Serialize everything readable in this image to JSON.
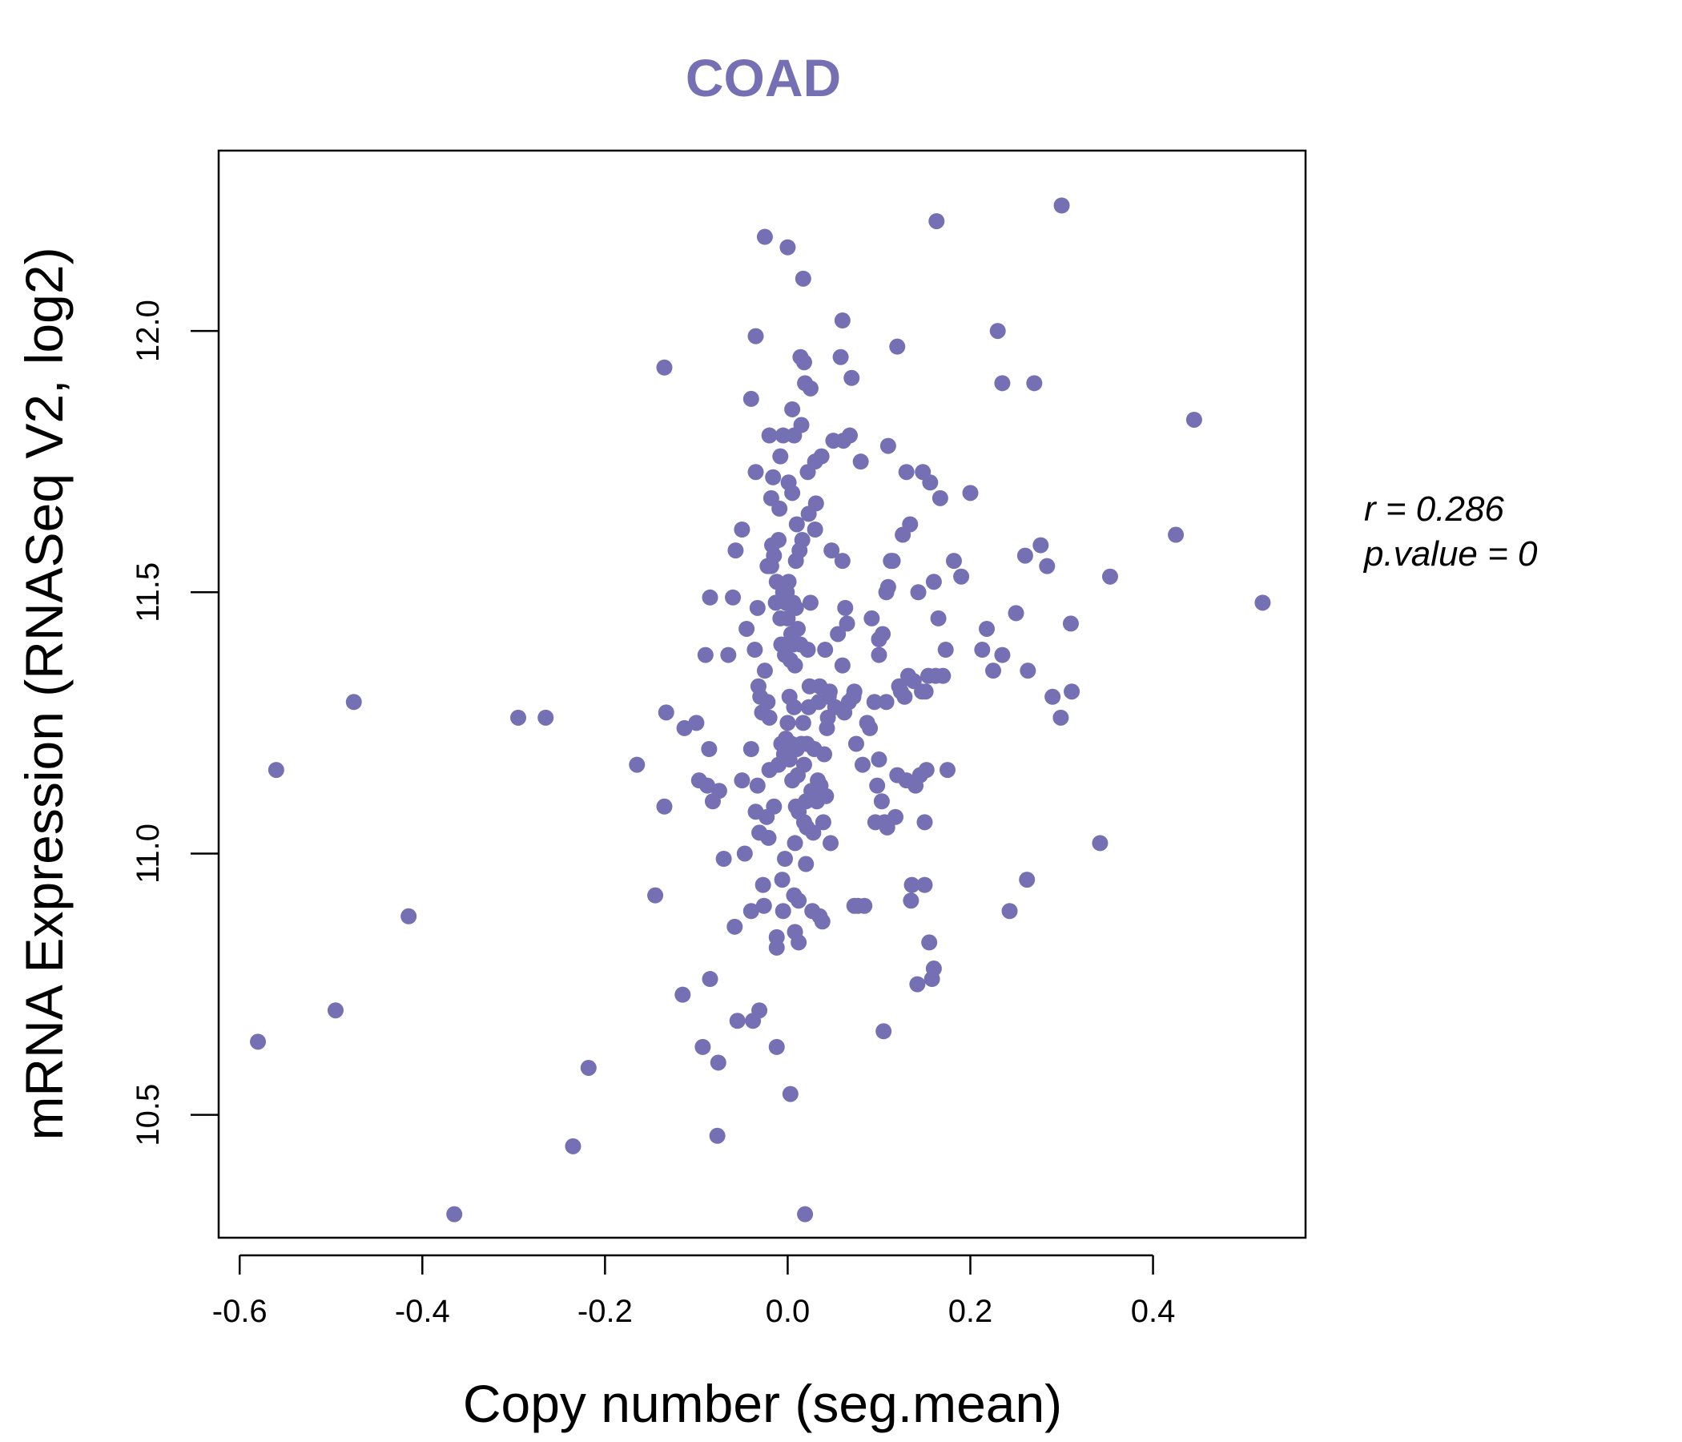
{
  "chart_data": {
    "type": "scatter",
    "title": "COAD",
    "xlabel": "Copy number (seg.mean)",
    "ylabel": "mRNA Expression (RNASeq V2, log2)",
    "xlim": [
      -0.623,
      0.567
    ],
    "ylim": [
      10.265,
      12.345
    ],
    "xticks": [
      -0.6,
      -0.4,
      -0.2,
      0.0,
      0.2,
      0.4
    ],
    "xtick_labels": [
      "-0.6",
      "-0.4",
      "-0.2",
      "0.0",
      "0.2",
      "0.4"
    ],
    "yticks": [
      10.5,
      11.0,
      11.5,
      12.0
    ],
    "ytick_labels": [
      "10.5",
      "11.0",
      "11.5",
      "12.0"
    ],
    "grid": false,
    "legend": "none",
    "colors": {
      "points": "#7570b3",
      "title": "#7570b3",
      "axes": "#000000"
    },
    "annotation": {
      "r_label": "r = 0.286",
      "p_label": "p.value = 0"
    },
    "points": [
      [
        -0.58,
        10.64
      ],
      [
        -0.56,
        11.16
      ],
      [
        -0.495,
        10.7
      ],
      [
        -0.475,
        11.29
      ],
      [
        -0.415,
        10.88
      ],
      [
        -0.365,
        10.31
      ],
      [
        -0.295,
        11.26
      ],
      [
        -0.265,
        11.26
      ],
      [
        -0.235,
        10.44
      ],
      [
        -0.218,
        10.59
      ],
      [
        -0.165,
        11.17
      ],
      [
        -0.145,
        10.92
      ],
      [
        -0.135,
        11.09
      ],
      [
        -0.133,
        11.27
      ],
      [
        -0.135,
        11.93
      ],
      [
        -0.115,
        10.73
      ],
      [
        -0.113,
        11.24
      ],
      [
        -0.1,
        11.25
      ],
      [
        -0.097,
        11.14
      ],
      [
        -0.093,
        10.63
      ],
      [
        -0.09,
        11.38
      ],
      [
        -0.088,
        11.13
      ],
      [
        -0.086,
        11.2
      ],
      [
        -0.085,
        11.49
      ],
      [
        -0.085,
        10.76
      ],
      [
        -0.082,
        11.1
      ],
      [
        -0.076,
        10.6
      ],
      [
        -0.075,
        11.12
      ],
      [
        -0.077,
        10.46
      ],
      [
        -0.07,
        10.99
      ],
      [
        -0.065,
        11.38
      ],
      [
        -0.06,
        11.49
      ],
      [
        -0.058,
        10.86
      ],
      [
        -0.057,
        11.58
      ],
      [
        -0.055,
        10.68
      ],
      [
        -0.05,
        11.14
      ],
      [
        -0.05,
        11.62
      ],
      [
        -0.047,
        11.0
      ],
      [
        -0.045,
        11.43
      ],
      [
        -0.04,
        11.2
      ],
      [
        -0.04,
        10.89
      ],
      [
        -0.04,
        11.87
      ],
      [
        -0.038,
        10.68
      ],
      [
        -0.035,
        11.08
      ],
      [
        -0.036,
        11.39
      ],
      [
        -0.035,
        11.73
      ],
      [
        -0.035,
        11.99
      ],
      [
        -0.033,
        11.47
      ],
      [
        -0.033,
        11.13
      ],
      [
        -0.032,
        11.32
      ],
      [
        -0.031,
        11.04
      ],
      [
        -0.031,
        10.7
      ],
      [
        -0.03,
        11.3
      ],
      [
        -0.028,
        11.27
      ],
      [
        -0.027,
        10.94
      ],
      [
        -0.026,
        10.9
      ],
      [
        -0.025,
        12.18
      ],
      [
        -0.025,
        11.35
      ],
      [
        -0.023,
        11.07
      ],
      [
        -0.022,
        11.29
      ],
      [
        -0.022,
        11.55
      ],
      [
        -0.021,
        11.03
      ],
      [
        -0.02,
        11.8
      ],
      [
        -0.02,
        11.26
      ],
      [
        -0.02,
        11.16
      ],
      [
        -0.018,
        11.55
      ],
      [
        -0.018,
        11.68
      ],
      [
        -0.017,
        11.59
      ],
      [
        -0.016,
        11.72
      ],
      [
        -0.015,
        11.57
      ],
      [
        -0.015,
        11.09
      ],
      [
        -0.013,
        11.48
      ],
      [
        -0.012,
        11.52
      ],
      [
        -0.012,
        10.84
      ],
      [
        -0.012,
        10.63
      ],
      [
        -0.012,
        10.82
      ],
      [
        -0.01,
        11.6
      ],
      [
        -0.01,
        11.17
      ],
      [
        -0.009,
        11.66
      ],
      [
        -0.008,
        11.45
      ],
      [
        -0.008,
        11.76
      ],
      [
        -0.007,
        11.21
      ],
      [
        -0.007,
        11.4
      ],
      [
        -0.006,
        10.95
      ],
      [
        -0.005,
        11.5
      ],
      [
        -0.005,
        11.8
      ],
      [
        -0.005,
        10.89
      ],
      [
        -0.004,
        11.19
      ],
      [
        -0.003,
        11.38
      ],
      [
        -0.003,
        10.99
      ],
      [
        -0.002,
        11.48
      ],
      [
        -0.002,
        11.22
      ],
      [
        -0.001,
        11.5
      ],
      [
        0.0,
        11.45
      ],
      [
        0.0,
        12.16
      ],
      [
        0.0,
        11.25
      ],
      [
        0.001,
        11.71
      ],
      [
        0.001,
        11.52
      ],
      [
        0.002,
        11.3
      ],
      [
        0.002,
        11.18
      ],
      [
        0.003,
        11.37
      ],
      [
        0.003,
        10.54
      ],
      [
        0.004,
        11.21
      ],
      [
        0.004,
        11.42
      ],
      [
        0.005,
        11.85
      ],
      [
        0.005,
        11.69
      ],
      [
        0.005,
        11.14
      ],
      [
        0.006,
        11.48
      ],
      [
        0.006,
        11.4
      ],
      [
        0.007,
        10.92
      ],
      [
        0.007,
        11.28
      ],
      [
        0.007,
        11.8
      ],
      [
        0.008,
        10.85
      ],
      [
        0.008,
        11.02
      ],
      [
        0.008,
        11.36
      ],
      [
        0.009,
        11.09
      ],
      [
        0.009,
        11.47
      ],
      [
        0.009,
        11.56
      ],
      [
        0.01,
        11.63
      ],
      [
        0.01,
        11.2
      ],
      [
        0.011,
        11.43
      ],
      [
        0.011,
        11.15
      ],
      [
        0.012,
        10.91
      ],
      [
        0.012,
        11.08
      ],
      [
        0.012,
        10.83
      ],
      [
        0.013,
        11.58
      ],
      [
        0.014,
        11.95
      ],
      [
        0.014,
        11.4
      ],
      [
        0.015,
        11.21
      ],
      [
        0.015,
        11.82
      ],
      [
        0.016,
        11.6
      ],
      [
        0.017,
        11.25
      ],
      [
        0.017,
        12.1
      ],
      [
        0.018,
        11.06
      ],
      [
        0.018,
        11.17
      ],
      [
        0.018,
        11.94
      ],
      [
        0.019,
        10.31
      ],
      [
        0.019,
        11.9
      ],
      [
        0.02,
        11.1
      ],
      [
        0.02,
        10.98
      ],
      [
        0.021,
        11.05
      ],
      [
        0.021,
        11.21
      ],
      [
        0.022,
        11.73
      ],
      [
        0.022,
        11.39
      ],
      [
        0.023,
        11.28
      ],
      [
        0.023,
        11.65
      ],
      [
        0.024,
        11.32
      ],
      [
        0.025,
        11.48
      ],
      [
        0.025,
        11.89
      ],
      [
        0.026,
        11.12
      ],
      [
        0.027,
        10.89
      ],
      [
        0.028,
        11.04
      ],
      [
        0.029,
        11.2
      ],
      [
        0.03,
        11.62
      ],
      [
        0.03,
        11.75
      ],
      [
        0.031,
        11.67
      ],
      [
        0.032,
        11.1
      ],
      [
        0.033,
        11.14
      ],
      [
        0.034,
        11.29
      ],
      [
        0.035,
        10.88
      ],
      [
        0.035,
        11.32
      ],
      [
        0.036,
        11.13
      ],
      [
        0.037,
        11.76
      ],
      [
        0.038,
        10.87
      ],
      [
        0.039,
        11.06
      ],
      [
        0.04,
        11.19
      ],
      [
        0.041,
        11.39
      ],
      [
        0.042,
        11.11
      ],
      [
        0.043,
        11.24
      ],
      [
        0.044,
        11.26
      ],
      [
        0.045,
        11.3
      ],
      [
        0.046,
        11.31
      ],
      [
        0.047,
        11.02
      ],
      [
        0.048,
        11.58
      ],
      [
        0.05,
        11.79
      ],
      [
        0.052,
        11.28
      ],
      [
        0.055,
        11.42
      ],
      [
        0.058,
        11.95
      ],
      [
        0.06,
        11.56
      ],
      [
        0.06,
        11.36
      ],
      [
        0.06,
        12.02
      ],
      [
        0.061,
        11.79
      ],
      [
        0.062,
        11.27
      ],
      [
        0.063,
        11.47
      ],
      [
        0.065,
        11.44
      ],
      [
        0.067,
        11.29
      ],
      [
        0.068,
        11.8
      ],
      [
        0.07,
        11.91
      ],
      [
        0.072,
        11.3
      ],
      [
        0.073,
        11.31
      ],
      [
        0.073,
        10.9
      ],
      [
        0.075,
        11.21
      ],
      [
        0.077,
        10.9
      ],
      [
        0.08,
        11.75
      ],
      [
        0.082,
        11.17
      ],
      [
        0.084,
        10.9
      ],
      [
        0.087,
        11.25
      ],
      [
        0.09,
        11.24
      ],
      [
        0.092,
        11.45
      ],
      [
        0.095,
        11.29
      ],
      [
        0.096,
        11.06
      ],
      [
        0.098,
        11.13
      ],
      [
        0.1,
        11.41
      ],
      [
        0.1,
        11.18
      ],
      [
        0.1,
        11.38
      ],
      [
        0.103,
        11.1
      ],
      [
        0.104,
        11.42
      ],
      [
        0.105,
        10.66
      ],
      [
        0.106,
        11.06
      ],
      [
        0.108,
        11.29
      ],
      [
        0.108,
        11.5
      ],
      [
        0.109,
        11.05
      ],
      [
        0.11,
        11.78
      ],
      [
        0.11,
        11.51
      ],
      [
        0.113,
        11.56
      ],
      [
        0.115,
        11.56
      ],
      [
        0.118,
        11.07
      ],
      [
        0.12,
        11.15
      ],
      [
        0.12,
        11.97
      ],
      [
        0.122,
        11.32
      ],
      [
        0.124,
        11.31
      ],
      [
        0.126,
        11.61
      ],
      [
        0.128,
        11.3
      ],
      [
        0.13,
        11.73
      ],
      [
        0.13,
        11.14
      ],
      [
        0.132,
        11.34
      ],
      [
        0.134,
        11.63
      ],
      [
        0.135,
        10.91
      ],
      [
        0.136,
        10.94
      ],
      [
        0.138,
        11.33
      ],
      [
        0.14,
        11.13
      ],
      [
        0.142,
        10.75
      ],
      [
        0.143,
        11.5
      ],
      [
        0.145,
        11.15
      ],
      [
        0.147,
        11.31
      ],
      [
        0.148,
        11.73
      ],
      [
        0.15,
        10.94
      ],
      [
        0.15,
        11.06
      ],
      [
        0.151,
        11.31
      ],
      [
        0.152,
        11.16
      ],
      [
        0.154,
        11.34
      ],
      [
        0.155,
        10.83
      ],
      [
        0.156,
        11.71
      ],
      [
        0.158,
        10.76
      ],
      [
        0.16,
        11.52
      ],
      [
        0.16,
        10.78
      ],
      [
        0.162,
        11.34
      ],
      [
        0.163,
        12.21
      ],
      [
        0.165,
        11.45
      ],
      [
        0.167,
        11.68
      ],
      [
        0.17,
        11.34
      ],
      [
        0.173,
        11.39
      ],
      [
        0.175,
        11.16
      ],
      [
        0.182,
        11.56
      ],
      [
        0.19,
        11.53
      ],
      [
        0.2,
        11.69
      ],
      [
        0.213,
        11.39
      ],
      [
        0.218,
        11.43
      ],
      [
        0.225,
        11.35
      ],
      [
        0.23,
        12.0
      ],
      [
        0.235,
        11.9
      ],
      [
        0.235,
        11.38
      ],
      [
        0.243,
        10.89
      ],
      [
        0.25,
        11.46
      ],
      [
        0.26,
        11.57
      ],
      [
        0.262,
        10.95
      ],
      [
        0.263,
        11.35
      ],
      [
        0.27,
        11.9
      ],
      [
        0.277,
        11.59
      ],
      [
        0.284,
        11.55
      ],
      [
        0.29,
        11.3
      ],
      [
        0.299,
        11.26
      ],
      [
        0.3,
        12.24
      ],
      [
        0.31,
        11.44
      ],
      [
        0.311,
        11.31
      ],
      [
        0.342,
        11.02
      ],
      [
        0.353,
        11.53
      ],
      [
        0.425,
        11.61
      ],
      [
        0.445,
        11.83
      ],
      [
        0.52,
        11.48
      ]
    ]
  }
}
